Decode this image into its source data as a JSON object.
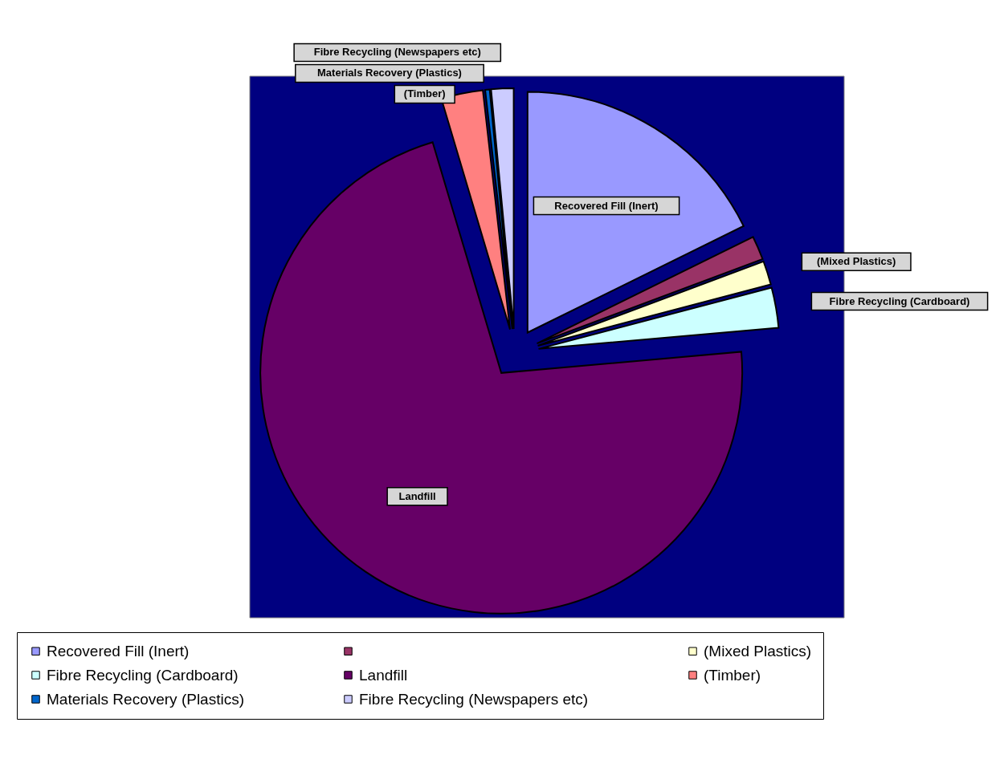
{
  "chart_data": {
    "type": "pie",
    "categories": [
      "Recovered Fill (Inert)",
      null,
      "(Mixed Plastics)",
      "Fibre Recycling (Cardboard)",
      "Landfill",
      "(Timber)",
      "Materials Recovery (Plastics)",
      "Fibre Recycling (Newspapers etc)"
    ],
    "values": [
      17.7,
      1.6,
      1.6,
      2.7,
      71.8,
      2.8,
      0.3,
      1.5
    ],
    "colors": [
      "#9999ff",
      "#993366",
      "#ffffcc",
      "#ccffff",
      "#660066",
      "#ff8080",
      "#0066cc",
      "#ccccff"
    ],
    "legend": "bottom"
  }
}
